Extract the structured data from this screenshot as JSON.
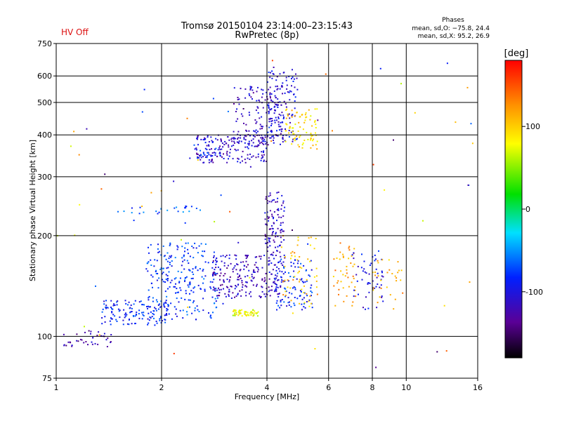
{
  "header": {
    "title_line1": "Tromsø 20150104 23:14:00–23:15:43",
    "title_line2": "RwPretec (8p)",
    "hv_status": "HV Off",
    "phase_heading": "Phases",
    "phase_o": "mean, sd,O: −75.8, 24.4",
    "phase_x": "mean, sd,X:  95.2, 26.9"
  },
  "chart_data": {
    "type": "scatter",
    "xlabel": "Frequency [MHz]",
    "ylabel": "Stationary phase Virtual Height [km]",
    "xscale": "log",
    "yscale": "log",
    "xlim": [
      1,
      16
    ],
    "ylim": [
      75,
      750
    ],
    "xticks": [
      1,
      2,
      4,
      6,
      8,
      10,
      16
    ],
    "xtick_labels": [
      "1",
      "2",
      "4",
      "6",
      "8",
      "10",
      "16"
    ],
    "yticks": [
      75,
      100,
      200,
      300,
      400,
      500,
      600,
      750
    ],
    "ytick_labels": [
      "75",
      "100",
      "200",
      "300",
      "400",
      "500",
      "600",
      "750"
    ],
    "xgrid": [
      2,
      4,
      6,
      8,
      10
    ],
    "ygrid": [
      100,
      200,
      300,
      400,
      500,
      600
    ],
    "colorbar": {
      "label": "[deg]",
      "min": -180,
      "max": 180,
      "ticks": [
        100,
        0,
        -100
      ],
      "tick_labels": [
        "100",
        "0",
        "-100"
      ]
    },
    "clusters": [
      {
        "fmin": 1.05,
        "fmax": 1.45,
        "hmin": 92,
        "hmax": 104,
        "phase": -125,
        "count": 40
      },
      {
        "fmin": 1.35,
        "fmax": 2.1,
        "hmin": 108,
        "hmax": 128,
        "phase": -88,
        "count": 130
      },
      {
        "fmin": 1.8,
        "fmax": 2.9,
        "hmin": 112,
        "hmax": 190,
        "phase": -78,
        "count": 240
      },
      {
        "fmin": 2.8,
        "fmax": 4.0,
        "hmin": 130,
        "hmax": 175,
        "phase": -118,
        "count": 180
      },
      {
        "fmin": 3.2,
        "fmax": 3.8,
        "hmin": 115,
        "hmax": 120,
        "phase": 72,
        "count": 55
      },
      {
        "fmin": 3.95,
        "fmax": 4.5,
        "hmin": 130,
        "hmax": 270,
        "phase": -112,
        "count": 160
      },
      {
        "fmin": 4.2,
        "fmax": 5.4,
        "hmin": 120,
        "hmax": 170,
        "phase": -85,
        "count": 100
      },
      {
        "fmin": 4.4,
        "fmax": 5.6,
        "hmin": 125,
        "hmax": 200,
        "phase": 110,
        "count": 55
      },
      {
        "fmin": 2.5,
        "fmax": 4.0,
        "hmin": 330,
        "hmax": 400,
        "phase": -112,
        "count": 170
      },
      {
        "fmin": 3.2,
        "fmax": 4.5,
        "hmin": 370,
        "hmax": 560,
        "phase": -115,
        "count": 140
      },
      {
        "fmin": 4.0,
        "fmax": 4.9,
        "hmin": 380,
        "hmax": 640,
        "phase": -100,
        "count": 130
      },
      {
        "fmin": 4.5,
        "fmax": 5.6,
        "hmin": 360,
        "hmax": 480,
        "phase": 95,
        "count": 80
      },
      {
        "fmin": 2.4,
        "fmax": 3.0,
        "hmin": 340,
        "hmax": 380,
        "phase": -80,
        "count": 25
      },
      {
        "fmin": 6.2,
        "fmax": 7.2,
        "hmin": 120,
        "hmax": 190,
        "phase": 120,
        "count": 45
      },
      {
        "fmin": 7.0,
        "fmax": 8.6,
        "hmin": 120,
        "hmax": 180,
        "phase": -100,
        "count": 55
      },
      {
        "fmin": 8.0,
        "fmax": 9.8,
        "hmin": 120,
        "hmax": 170,
        "phase": 115,
        "count": 30
      },
      {
        "fmin": 1.5,
        "fmax": 2.6,
        "hmin": 232,
        "hmax": 245,
        "phase": -70,
        "count": 25
      },
      {
        "fmin": 1.0,
        "fmax": 16,
        "hmin": 80,
        "hmax": 700,
        "phase": 0,
        "count": 70
      }
    ]
  }
}
